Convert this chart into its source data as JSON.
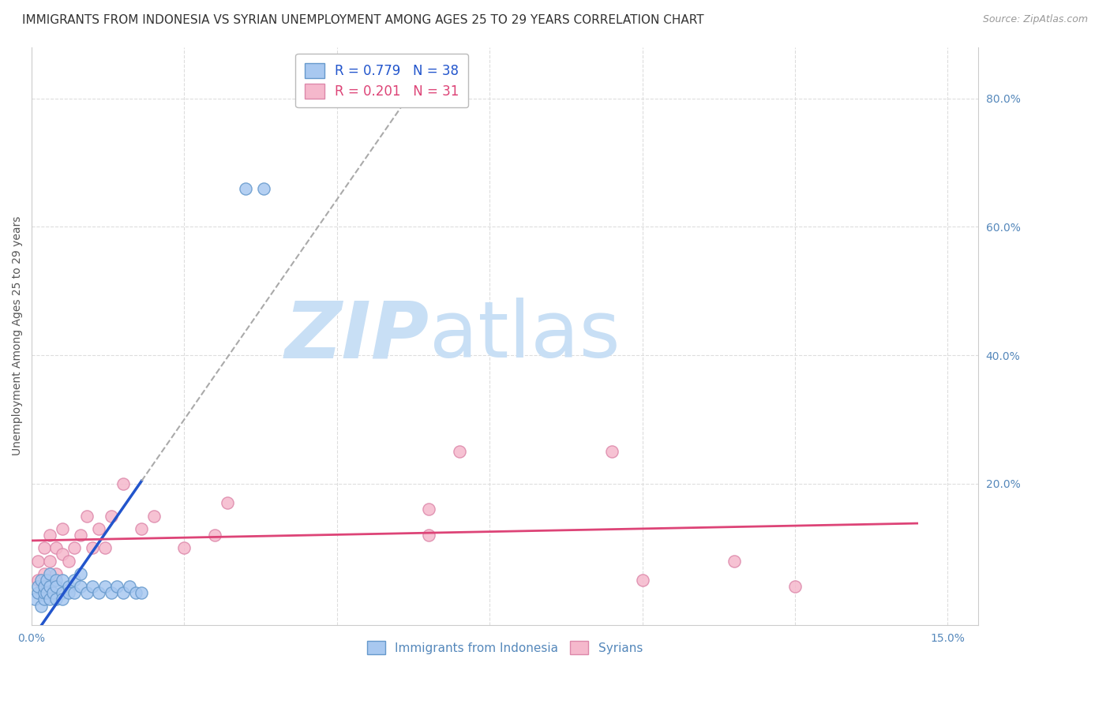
{
  "title": "IMMIGRANTS FROM INDONESIA VS SYRIAN UNEMPLOYMENT AMONG AGES 25 TO 29 YEARS CORRELATION CHART",
  "source": "Source: ZipAtlas.com",
  "ylabel": "Unemployment Among Ages 25 to 29 years",
  "xlim": [
    0.0,
    0.155
  ],
  "ylim": [
    -0.02,
    0.88
  ],
  "background_color": "#ffffff",
  "watermark_zip": "ZIP",
  "watermark_atlas": "atlas",
  "watermark_color_zip": "#c8dff5",
  "watermark_color_atlas": "#c8dff5",
  "indonesia_color": "#a8c8f0",
  "indonesia_edge": "#6699cc",
  "syrian_color": "#f5b8cc",
  "syrian_edge": "#dd88aa",
  "indonesia_line_color": "#2255cc",
  "syrian_line_color": "#dd4477",
  "dash_line_color": "#aaaaaa",
  "grid_color": "#dddddd",
  "indonesia_r": 0.779,
  "indonesia_n": 38,
  "syrian_r": 0.201,
  "syrian_n": 31,
  "indo_x": [
    0.0005,
    0.001,
    0.001,
    0.0015,
    0.0015,
    0.002,
    0.002,
    0.002,
    0.0025,
    0.0025,
    0.003,
    0.003,
    0.003,
    0.0035,
    0.004,
    0.004,
    0.004,
    0.005,
    0.005,
    0.005,
    0.006,
    0.006,
    0.007,
    0.007,
    0.008,
    0.008,
    0.009,
    0.01,
    0.011,
    0.012,
    0.013,
    0.014,
    0.015,
    0.016,
    0.017,
    0.018,
    0.035,
    0.038
  ],
  "indo_y": [
    0.02,
    0.03,
    0.04,
    0.01,
    0.05,
    0.02,
    0.03,
    0.04,
    0.03,
    0.05,
    0.04,
    0.06,
    0.02,
    0.03,
    0.05,
    0.02,
    0.04,
    0.03,
    0.05,
    0.02,
    0.04,
    0.03,
    0.05,
    0.03,
    0.04,
    0.06,
    0.03,
    0.04,
    0.03,
    0.04,
    0.03,
    0.04,
    0.03,
    0.04,
    0.03,
    0.03,
    0.66,
    0.66
  ],
  "syr_x": [
    0.001,
    0.001,
    0.002,
    0.002,
    0.003,
    0.003,
    0.004,
    0.004,
    0.005,
    0.005,
    0.006,
    0.007,
    0.008,
    0.009,
    0.01,
    0.011,
    0.012,
    0.013,
    0.015,
    0.018,
    0.02,
    0.025,
    0.03,
    0.032,
    0.065,
    0.065,
    0.07,
    0.095,
    0.1,
    0.115,
    0.125
  ],
  "syr_y": [
    0.05,
    0.08,
    0.06,
    0.1,
    0.08,
    0.12,
    0.06,
    0.1,
    0.09,
    0.13,
    0.08,
    0.1,
    0.12,
    0.15,
    0.1,
    0.13,
    0.1,
    0.15,
    0.2,
    0.13,
    0.15,
    0.1,
    0.12,
    0.17,
    0.12,
    0.16,
    0.25,
    0.25,
    0.05,
    0.08,
    0.04
  ],
  "title_fontsize": 11,
  "axis_label_fontsize": 10,
  "tick_fontsize": 10,
  "legend_fontsize": 12,
  "marker_size": 120
}
